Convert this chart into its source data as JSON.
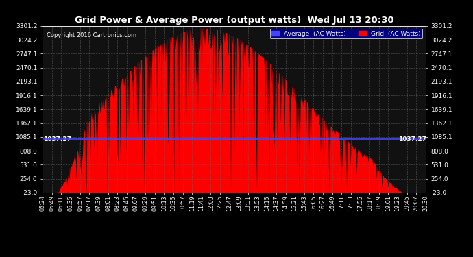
{
  "title": "Grid Power & Average Power (output watts)  Wed Jul 13 20:30",
  "copyright": "Copyright 2016 Cartronics.com",
  "yticks": [
    3301.2,
    3024.2,
    2747.1,
    2470.1,
    2193.1,
    1916.1,
    1639.1,
    1362.1,
    1085.1,
    808.0,
    531.0,
    254.0,
    -23.0
  ],
  "ymin": -23.0,
  "ymax": 3301.2,
  "average_line": 1037.27,
  "average_label": "1037.27",
  "bg_color": "#000000",
  "plot_bg_color": "#111111",
  "grid_color": "#666666",
  "red_color": "#FF0000",
  "blue_color": "#4444FF",
  "legend_avg_label": "Average  (AC Watts)",
  "legend_grid_label": "Grid  (AC Watts)",
  "xtick_labels": [
    "05:24",
    "05:49",
    "06:11",
    "06:35",
    "06:57",
    "07:17",
    "07:39",
    "08:01",
    "08:23",
    "08:45",
    "09:07",
    "09:29",
    "09:51",
    "10:13",
    "10:35",
    "10:57",
    "11:19",
    "11:41",
    "12:03",
    "12:25",
    "12:47",
    "13:09",
    "13:31",
    "13:53",
    "14:15",
    "14:37",
    "14:59",
    "15:21",
    "15:43",
    "16:05",
    "16:27",
    "16:49",
    "17:11",
    "17:33",
    "17:55",
    "18:17",
    "18:39",
    "19:01",
    "19:23",
    "19:45",
    "20:07",
    "20:30"
  ],
  "num_points": 500
}
